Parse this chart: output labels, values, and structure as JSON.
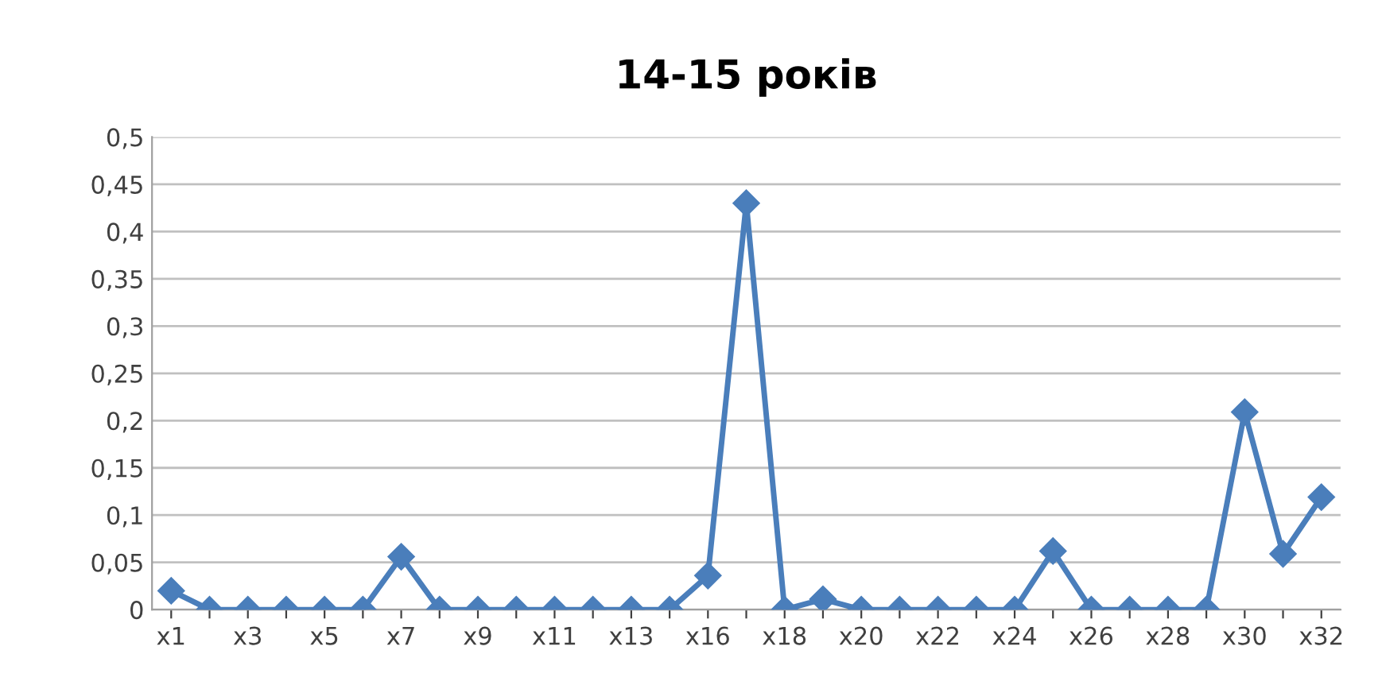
{
  "chart_data": {
    "type": "line",
    "title": "14-15 років",
    "categories": [
      "x1",
      null,
      "x3",
      null,
      "x5",
      null,
      "x7",
      null,
      "x9",
      null,
      "x11",
      null,
      "x13",
      null,
      "x16",
      null,
      "x18",
      null,
      "x20",
      null,
      "x22",
      null,
      "x24",
      null,
      "x26",
      null,
      "x28",
      null,
      "x30",
      null,
      "x32"
    ],
    "series": [
      {
        "color": "#4a7ebb",
        "values": [
          0.02,
          0,
          0,
          0,
          0,
          0,
          0.056,
          0,
          0,
          0,
          0,
          0,
          0,
          0,
          0.036,
          0.43,
          0,
          0.011,
          0,
          0,
          0,
          0,
          0,
          0.062,
          0,
          0,
          0,
          0,
          0.209,
          0.059,
          0.119
        ]
      }
    ],
    "ylim": [
      0,
      0.5
    ],
    "yticks": [
      0,
      {
        "value": 0.05,
        "label": "0,05"
      },
      {
        "value": 0.1,
        "label": "0,1"
      },
      {
        "value": 0.15,
        "label": "0,15"
      },
      {
        "value": 0.2,
        "label": "0,2"
      },
      {
        "value": 0.25,
        "label": "0,25"
      },
      {
        "value": 0.3,
        "label": "0,3"
      },
      {
        "value": 0.35,
        "label": "0,35"
      },
      {
        "value": 0.4,
        "label": "0,4"
      },
      {
        "value": 0.45,
        "label": "0,45"
      },
      {
        "value": 0.5,
        "label": "0,5"
      }
    ],
    "grid": "y",
    "marker": "diamond",
    "line_style": "solid"
  }
}
